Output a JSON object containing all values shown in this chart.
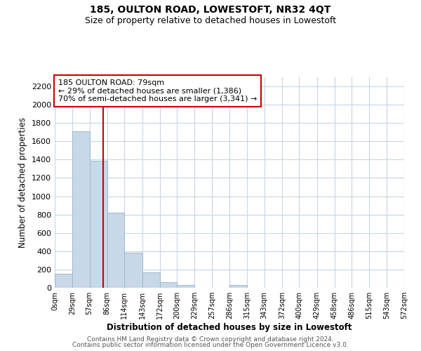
{
  "title": "185, OULTON ROAD, LOWESTOFT, NR32 4QT",
  "subtitle": "Size of property relative to detached houses in Lowestoft",
  "xlabel": "Distribution of detached houses by size in Lowestoft",
  "ylabel": "Number of detached properties",
  "bin_edges": [
    0,
    29,
    57,
    86,
    114,
    143,
    172,
    200,
    229,
    257,
    286,
    315,
    343,
    372,
    400,
    429,
    458,
    486,
    515,
    543,
    572
  ],
  "bar_heights": [
    155,
    1710,
    1390,
    820,
    385,
    165,
    65,
    30,
    0,
    0,
    30,
    0,
    0,
    0,
    0,
    0,
    0,
    0,
    0,
    0
  ],
  "bar_color": "#c8d8e8",
  "bar_edge_color": "#a0b8cc",
  "vline_x": 79,
  "vline_color": "#cc0000",
  "ylim": [
    0,
    2300
  ],
  "yticks": [
    0,
    200,
    400,
    600,
    800,
    1000,
    1200,
    1400,
    1600,
    1800,
    2000,
    2200
  ],
  "tick_labels": [
    "0sqm",
    "29sqm",
    "57sqm",
    "86sqm",
    "114sqm",
    "143sqm",
    "172sqm",
    "200sqm",
    "229sqm",
    "257sqm",
    "286sqm",
    "315sqm",
    "343sqm",
    "372sqm",
    "400sqm",
    "429sqm",
    "458sqm",
    "486sqm",
    "515sqm",
    "543sqm",
    "572sqm"
  ],
  "annotation_line1": "185 OULTON ROAD: 79sqm",
  "annotation_line2": "← 29% of detached houses are smaller (1,386)",
  "annotation_line3": "70% of semi-detached houses are larger (3,341) →",
  "footer_line1": "Contains HM Land Registry data © Crown copyright and database right 2024.",
  "footer_line2": "Contains public sector information licensed under the Open Government Licence v3.0.",
  "background_color": "#ffffff",
  "grid_color": "#c8d4e4"
}
